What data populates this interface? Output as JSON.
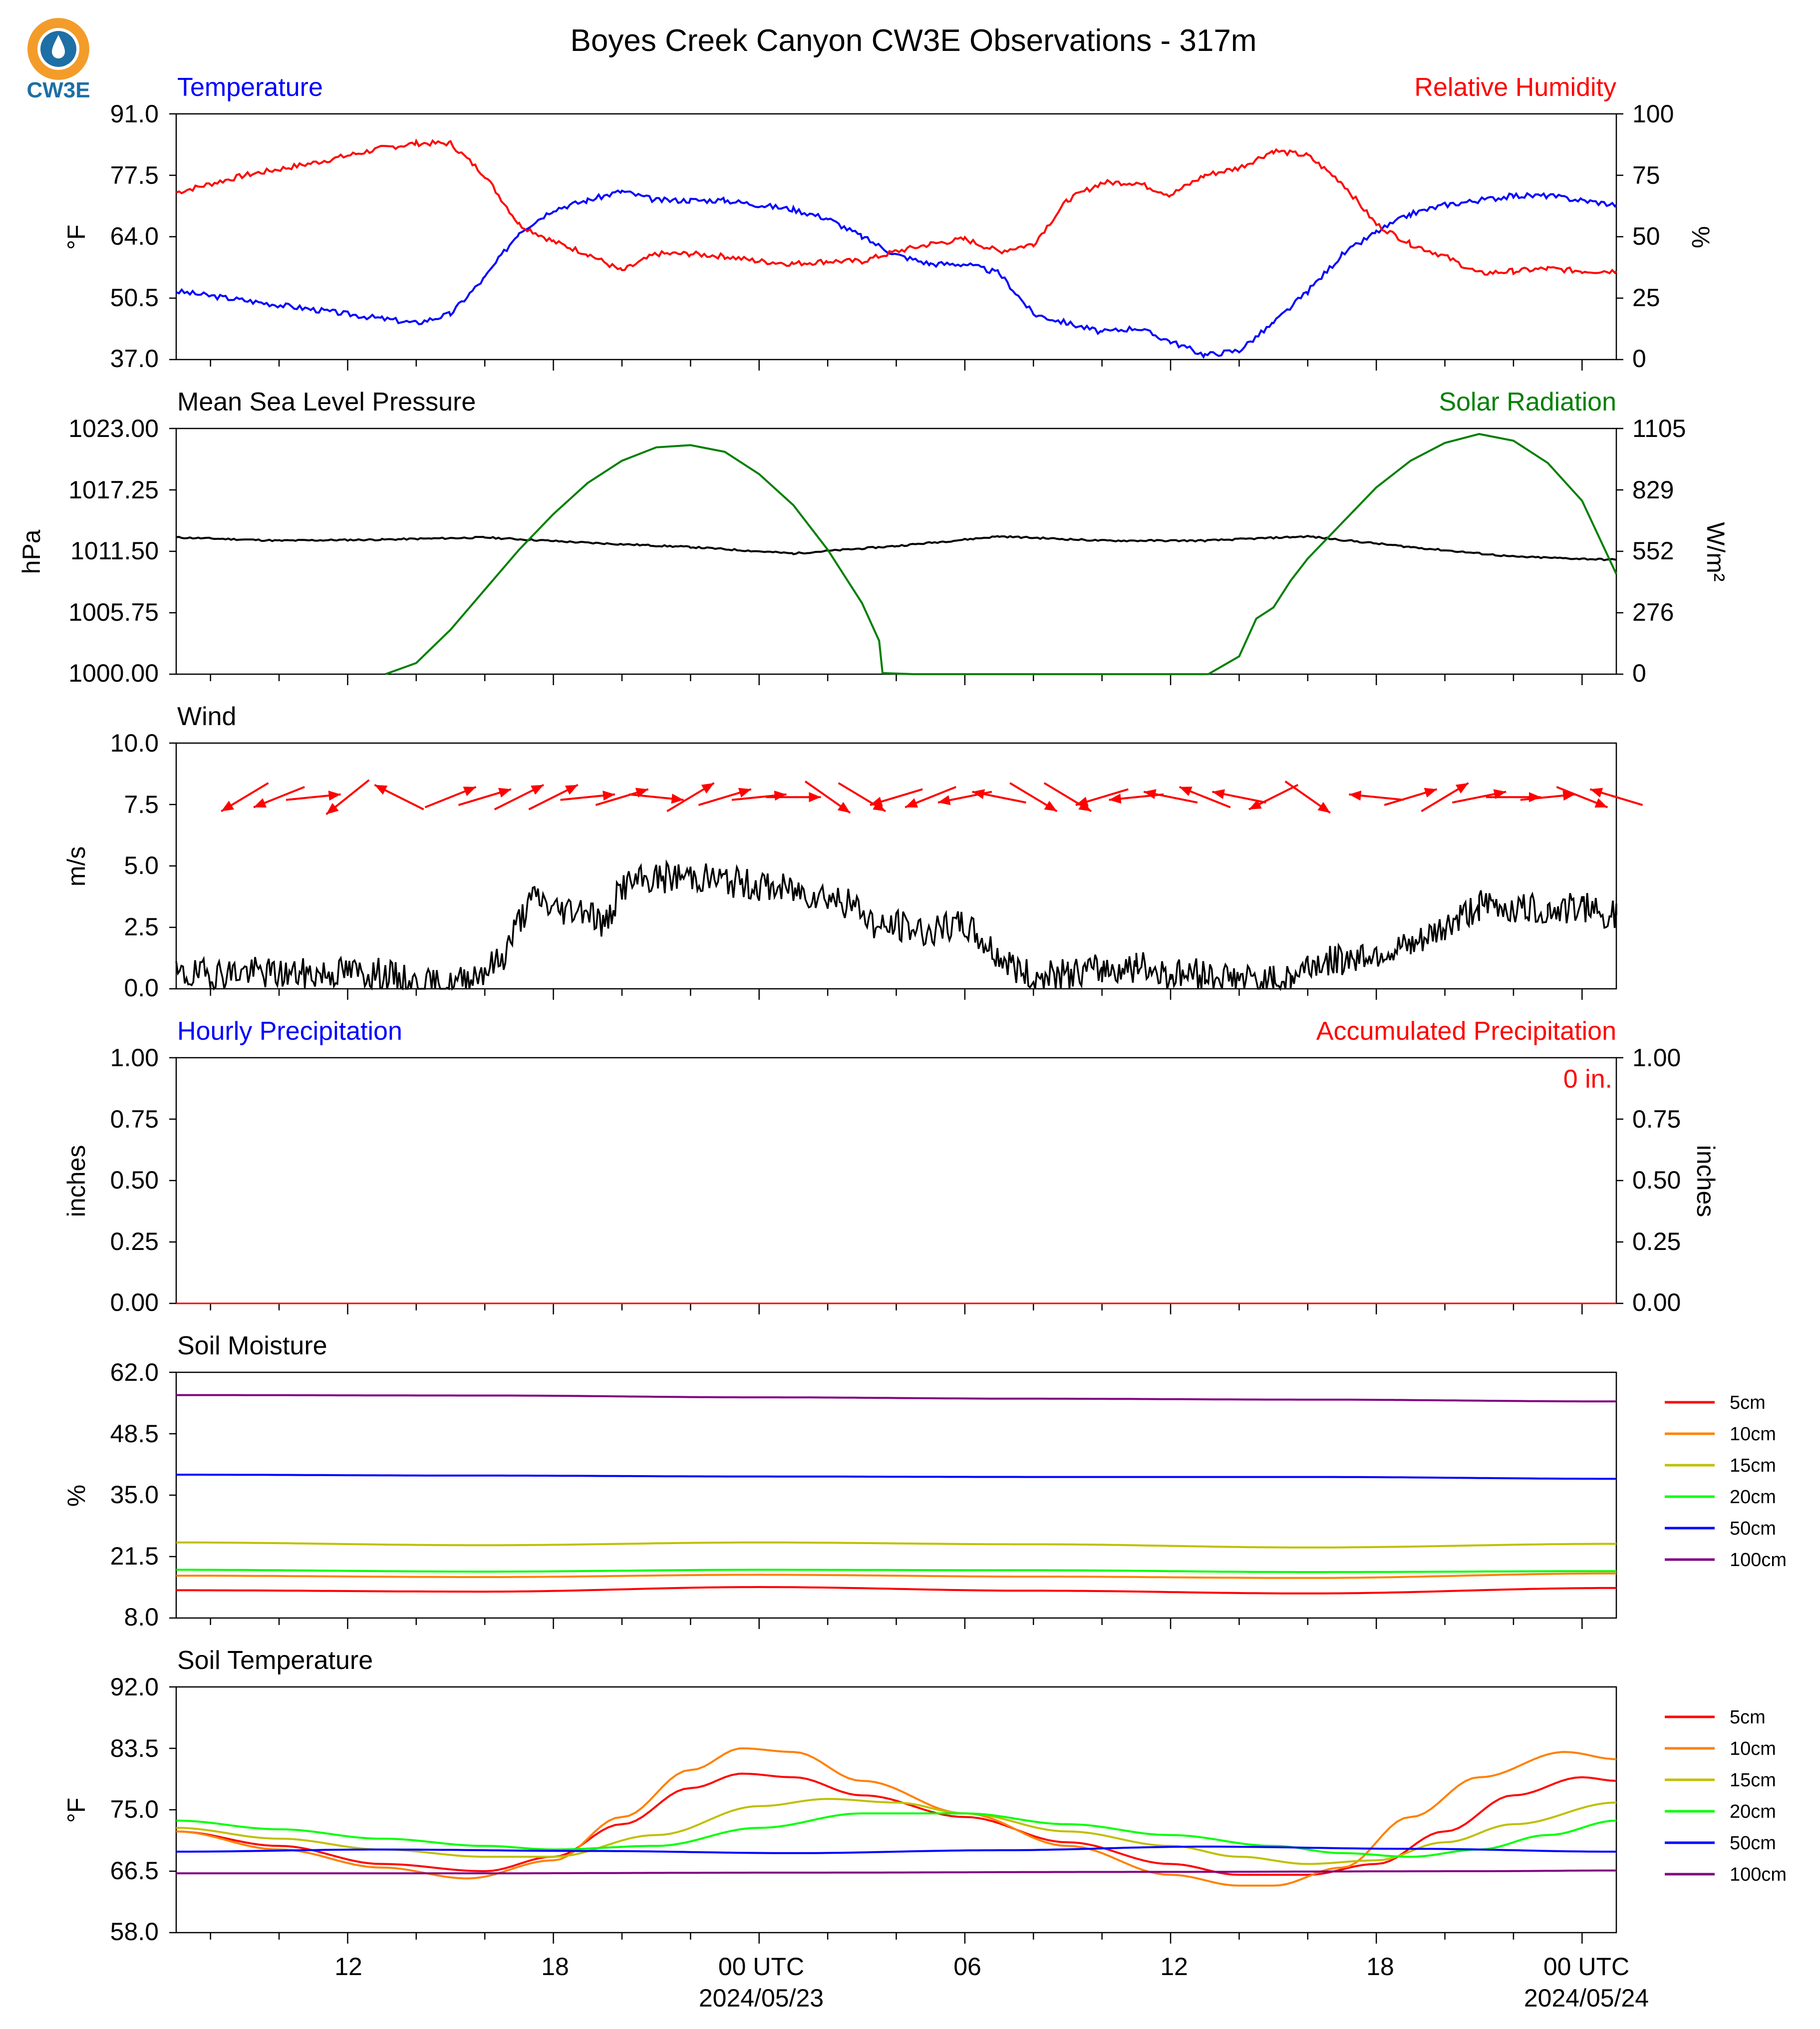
{
  "figure_title": "Boyes Creek Canyon CW3E Observations - 317m",
  "logo_text": "CW3E",
  "colors": {
    "temp": "#0000ff",
    "rh": "#ff0000",
    "pressure": "#000000",
    "solar": "#007f00",
    "wind": "#000000",
    "wind_arrow": "#ff0000",
    "hourly": "#0000ff",
    "accum": "#ff0000",
    "logo_orange": "#f39c2a",
    "logo_blue": "#1d6fa5"
  },
  "x_axis": {
    "major_labels": [
      {
        "hour": 12,
        "label": "12"
      },
      {
        "hour": 18,
        "label": "18"
      },
      {
        "hour": 24,
        "label": "00 UTC",
        "date": "2024/05/23"
      },
      {
        "hour": 30,
        "label": "06"
      },
      {
        "hour": 36,
        "label": "12"
      },
      {
        "hour": 42,
        "label": "18"
      },
      {
        "hour": 48,
        "label": "00 UTC",
        "date": "2024/05/24"
      }
    ],
    "start_hour": 7,
    "end_hour": 49,
    "minor_step_hours": 2
  },
  "panels": {
    "temperature": {
      "left_title": "Temperature",
      "right_title": "Relative Humidity",
      "left_unit": "°F",
      "right_unit": "%",
      "left_ticks": [
        "37.0",
        "50.5",
        "64.0",
        "77.5",
        "91.0"
      ],
      "right_ticks": [
        "0",
        "25",
        "50",
        "75",
        "100"
      ]
    },
    "pressure": {
      "left_title": "Mean Sea Level Pressure",
      "right_title": "Solar Radiation",
      "left_unit": "hPa",
      "right_unit": "W/m²",
      "left_ticks": [
        "1000.00",
        "1005.75",
        "1011.50",
        "1017.25",
        "1023.00"
      ],
      "right_ticks": [
        "0",
        "276",
        "552",
        "829",
        "1105"
      ]
    },
    "wind": {
      "left_title": "Wind",
      "left_unit": "m/s",
      "left_ticks": [
        "0.0",
        "2.5",
        "5.0",
        "7.5",
        "10.0"
      ]
    },
    "precip": {
      "left_title": "Hourly Precipitation",
      "right_title": "Accumulated Precipitation",
      "left_unit": "inches",
      "right_unit": "inches",
      "left_ticks": [
        "0.00",
        "0.25",
        "0.50",
        "0.75",
        "1.00"
      ],
      "right_ticks": [
        "0.00",
        "0.25",
        "0.50",
        "0.75",
        "1.00"
      ],
      "accum_label": "0 in."
    },
    "soil_moisture": {
      "left_title": "Soil Moisture",
      "left_unit": "%",
      "left_ticks": [
        "8.0",
        "21.5",
        "35.0",
        "48.5",
        "62.0"
      ],
      "legend": [
        {
          "name": "5cm",
          "color": "#ff0000"
        },
        {
          "name": "10cm",
          "color": "#ff8000"
        },
        {
          "name": "15cm",
          "color": "#bfbf00"
        },
        {
          "name": "20cm",
          "color": "#00ff00"
        },
        {
          "name": "50cm",
          "color": "#0000ff"
        },
        {
          "name": "100cm",
          "color": "#800080"
        }
      ]
    },
    "soil_temperature": {
      "left_title": "Soil Temperature",
      "left_unit": "°F",
      "left_ticks": [
        "58.0",
        "66.5",
        "75.0",
        "83.5",
        "92.0"
      ],
      "legend": [
        {
          "name": "5cm",
          "color": "#ff0000"
        },
        {
          "name": "10cm",
          "color": "#ff8000"
        },
        {
          "name": "15cm",
          "color": "#bfbf00"
        },
        {
          "name": "20cm",
          "color": "#00ff00"
        },
        {
          "name": "50cm",
          "color": "#0000ff"
        },
        {
          "name": "100cm",
          "color": "#800080"
        }
      ]
    }
  },
  "chart_data": [
    {
      "type": "line",
      "title": "Temperature",
      "ylim": [
        37,
        91
      ],
      "y2lim": [
        0,
        100
      ],
      "series": [
        {
          "name": "Temperature",
          "axis": "left",
          "x": [
            7,
            9,
            11,
            12,
            13,
            14,
            15,
            16,
            17,
            18,
            19,
            20,
            21,
            22,
            23,
            24,
            25,
            26,
            27,
            28,
            29,
            30,
            31,
            32,
            33,
            34,
            35,
            36,
            37,
            38,
            39,
            40,
            41,
            42,
            43,
            44,
            45,
            46,
            47,
            48,
            49
          ],
          "y": [
            52,
            50,
            48,
            47,
            46,
            45,
            47,
            55,
            65,
            70,
            72,
            74,
            72,
            72,
            72,
            71,
            70,
            68,
            64,
            60,
            58,
            58,
            56,
            47,
            45,
            43,
            44,
            41,
            38,
            39,
            45,
            52,
            60,
            65,
            69,
            71,
            72,
            73,
            73,
            72,
            71
          ]
        },
        {
          "name": "Relative Humidity",
          "axis": "right",
          "x": [
            7,
            9,
            11,
            12,
            13,
            14,
            15,
            16,
            17,
            18,
            19,
            20,
            21,
            22,
            23,
            24,
            25,
            26,
            27,
            28,
            29,
            30,
            31,
            32,
            33,
            34,
            35,
            36,
            37,
            38,
            39,
            40,
            41,
            42,
            43,
            44,
            45,
            46,
            47,
            48,
            49
          ],
          "y": [
            68,
            75,
            80,
            83,
            86,
            88,
            88,
            75,
            55,
            48,
            43,
            36,
            43,
            43,
            42,
            40,
            39,
            40,
            40,
            44,
            47,
            49,
            44,
            47,
            65,
            72,
            72,
            67,
            75,
            78,
            85,
            83,
            72,
            55,
            47,
            42,
            35,
            36,
            37,
            36,
            36
          ]
        }
      ]
    },
    {
      "type": "line",
      "title": "Mean Sea Level Pressure",
      "ylim": [
        1000,
        1023
      ],
      "y2lim": [
        0,
        1105
      ],
      "series": [
        {
          "name": "Mean Sea Level Pressure",
          "axis": "left",
          "x": [
            7,
            10,
            13,
            16,
            19,
            22,
            25,
            28,
            31,
            34,
            37,
            40,
            43,
            46,
            49
          ],
          "y": [
            1012.8,
            1012.5,
            1012.6,
            1012.8,
            1012.3,
            1011.9,
            1011.3,
            1012.0,
            1012.9,
            1012.5,
            1012.5,
            1012.9,
            1011.9,
            1011.0,
            1010.7
          ]
        },
        {
          "name": "Solar Radiation",
          "axis": "right",
          "x": [
            13.1,
            14,
            15,
            16,
            17,
            18,
            19,
            20,
            21,
            22,
            23,
            24,
            25,
            26,
            27,
            27.5,
            27.6,
            28.5,
            37.1,
            38,
            38.5,
            39,
            39.5,
            40,
            41,
            42,
            43,
            44,
            45,
            46,
            47,
            48,
            49
          ],
          "y": [
            0,
            50,
            200,
            380,
            560,
            720,
            860,
            960,
            1020,
            1030,
            1000,
            900,
            760,
            560,
            320,
            150,
            5,
            0,
            0,
            80,
            250,
            300,
            420,
            520,
            680,
            840,
            960,
            1040,
            1080,
            1050,
            950,
            780,
            450
          ]
        }
      ]
    },
    {
      "type": "line",
      "title": "Wind",
      "ylim": [
        0,
        10
      ],
      "series": [
        {
          "name": "Wind",
          "x": [
            7,
            8,
            9,
            10,
            11,
            12,
            13,
            14,
            15,
            16,
            16.5,
            17,
            17.5,
            18,
            19,
            19.5,
            20,
            21,
            22,
            23,
            24,
            25,
            26,
            27,
            27.5,
            28,
            29,
            30,
            31,
            32,
            33,
            34,
            35,
            36,
            37,
            38,
            39,
            39.5,
            40,
            41,
            42,
            43,
            44,
            45,
            46,
            47,
            48,
            49
          ],
          "y": [
            0.5,
            0.6,
            0.7,
            0.6,
            0.6,
            0.7,
            0.6,
            0.2,
            0.1,
            0.8,
            1.2,
            2.8,
            3.8,
            3.2,
            3.3,
            2.5,
            4.2,
            4.5,
            4.6,
            4.4,
            4.2,
            4.0,
            3.8,
            3.2,
            2.4,
            2.6,
            2.3,
            2.6,
            1.3,
            0.4,
            0.6,
            0.8,
            0.9,
            0.6,
            0.6,
            0.4,
            0.3,
            0.4,
            1.0,
            1.2,
            1.5,
            1.6,
            2.5,
            3.4,
            3.3,
            3.2,
            3.3,
            3.0
          ]
        },
        {
          "name": "Wind arrows (u, v m/s)",
          "x": [
            9,
            10,
            11,
            12,
            13.5,
            15,
            16,
            17,
            18,
            19,
            20,
            21,
            22,
            23,
            24,
            25,
            26,
            27,
            28,
            29,
            30,
            31,
            32,
            33,
            34,
            35,
            36,
            37,
            38,
            39,
            40,
            42,
            43,
            44,
            45,
            46,
            47,
            48,
            49
          ],
          "u": [
            -1,
            -1,
            1,
            -1,
            -1,
            1,
            1,
            1,
            1,
            1,
            1,
            1,
            1,
            1,
            1,
            1,
            1,
            1,
            -1,
            -1,
            -1,
            -1,
            1,
            1,
            -1,
            -1,
            -1,
            -1,
            -1,
            -1,
            1,
            -1,
            1,
            1,
            1,
            1,
            1,
            1,
            -1
          ],
          "v": [
            -0.6,
            -0.4,
            0.1,
            -0.8,
            0.5,
            0.4,
            0.3,
            0.5,
            0.5,
            0.1,
            0.3,
            -0.1,
            0.6,
            0.3,
            0.1,
            0,
            -0.7,
            -0.6,
            -0.3,
            -0.4,
            -0.2,
            0.2,
            -0.6,
            -0.6,
            -0.3,
            -0.1,
            0.2,
            0.4,
            0.2,
            -0.5,
            -0.7,
            0.1,
            0.3,
            0.6,
            0.2,
            0,
            0.1,
            -0.4,
            0.3
          ]
        }
      ]
    },
    {
      "type": "line",
      "title": "Hourly Precipitation",
      "ylim": [
        0,
        1
      ],
      "y2lim": [
        0,
        1
      ],
      "series": [
        {
          "name": "Hourly Precipitation",
          "axis": "left",
          "x": [
            7,
            49
          ],
          "y": [
            0,
            0
          ]
        },
        {
          "name": "Accumulated Precipitation",
          "axis": "right",
          "x": [
            7,
            49
          ],
          "y": [
            0,
            0
          ]
        }
      ]
    },
    {
      "type": "line",
      "title": "Soil Moisture",
      "ylim": [
        8,
        62
      ],
      "series": [
        {
          "name": "5cm",
          "x": [
            7,
            16,
            24,
            32,
            40,
            49
          ],
          "y": [
            14.1,
            13.8,
            14.8,
            14.0,
            13.4,
            14.6
          ]
        },
        {
          "name": "10cm",
          "x": [
            7,
            16,
            24,
            32,
            40,
            49
          ],
          "y": [
            17.3,
            17.0,
            17.5,
            17.1,
            16.8,
            17.8
          ]
        },
        {
          "name": "15cm",
          "x": [
            7,
            16,
            24,
            32,
            40,
            49
          ],
          "y": [
            24.6,
            24.0,
            24.6,
            24.2,
            23.5,
            24.3
          ]
        },
        {
          "name": "20cm",
          "x": [
            7,
            16,
            24,
            32,
            40,
            49
          ],
          "y": [
            18.6,
            18.2,
            18.6,
            18.5,
            18.1,
            18.3
          ]
        },
        {
          "name": "50cm",
          "x": [
            7,
            16,
            24,
            32,
            40,
            49
          ],
          "y": [
            39.5,
            39.3,
            39.1,
            39.0,
            39.0,
            38.6
          ]
        },
        {
          "name": "100cm",
          "x": [
            7,
            16,
            24,
            32,
            40,
            49
          ],
          "y": [
            57.0,
            56.9,
            56.5,
            56.2,
            56.0,
            55.6
          ]
        }
      ]
    },
    {
      "type": "line",
      "title": "Soil Temperature",
      "ylim": [
        58,
        92
      ],
      "series": [
        {
          "name": "5cm",
          "x": [
            7,
            10,
            13,
            16,
            18,
            20,
            22,
            23.5,
            25,
            27,
            30,
            33,
            36,
            38,
            40,
            42,
            44,
            46,
            48,
            49
          ],
          "y": [
            72,
            70,
            67.5,
            66.5,
            68.5,
            73,
            78,
            80,
            79.5,
            77,
            74,
            70.5,
            67.5,
            66,
            66,
            67.5,
            72,
            77,
            79.5,
            79
          ]
        },
        {
          "name": "10cm",
          "x": [
            7,
            10,
            13,
            15.5,
            18,
            20,
            22,
            23.5,
            25,
            27,
            30,
            33,
            36,
            38,
            39,
            41,
            43,
            45,
            47.5,
            49
          ],
          "y": [
            72,
            69.5,
            67,
            65.5,
            68,
            74,
            80.5,
            83.5,
            83,
            79,
            74.5,
            70,
            66,
            64.5,
            64.5,
            67,
            74,
            79.5,
            83,
            82
          ]
        },
        {
          "name": "15cm",
          "x": [
            7,
            10,
            13,
            16,
            18,
            21,
            24,
            26,
            28,
            30,
            33,
            36,
            38,
            40,
            42,
            44,
            46,
            49
          ],
          "y": [
            72.5,
            71,
            69.5,
            68.5,
            68.5,
            71.5,
            75.5,
            76.5,
            76,
            74.5,
            72,
            70,
            68.5,
            67.5,
            68,
            70.5,
            73,
            76
          ]
        },
        {
          "name": "20cm",
          "x": [
            7,
            10,
            13,
            16,
            18,
            21,
            24,
            27,
            30,
            33,
            36,
            39,
            41,
            43,
            45,
            47,
            49
          ],
          "y": [
            73.5,
            72.3,
            71,
            70,
            69.5,
            70,
            72.5,
            74.5,
            74.5,
            73,
            71.5,
            70,
            69,
            68.5,
            69.5,
            71.5,
            73.5
          ]
        },
        {
          "name": "50cm",
          "x": [
            7,
            13,
            19,
            25,
            31,
            37,
            43,
            49
          ],
          "y": [
            69.2,
            69.5,
            69.3,
            69.0,
            69.4,
            69.9,
            69.6,
            69.2
          ]
        },
        {
          "name": "100cm",
          "x": [
            7,
            15,
            25,
            35,
            45,
            49
          ],
          "y": [
            66.2,
            66.2,
            66.3,
            66.4,
            66.5,
            66.6
          ]
        }
      ]
    }
  ]
}
